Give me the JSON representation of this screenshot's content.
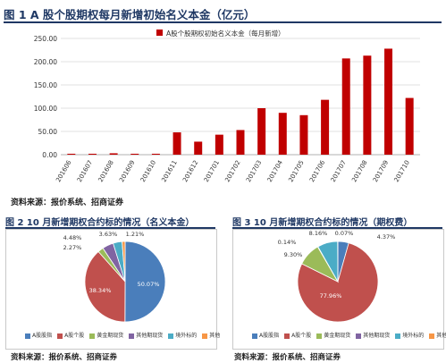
{
  "fig1": {
    "title": "图 1 A 股个股期权每月新增初始名义本金（亿元）",
    "legend_label": "A股个股期权初始名义本金（每月新增）",
    "bar_color": "#c00000"
  },
  "fig2": {
    "title": "图 2 10 月新增期权合约标的情况（名义本金）"
  },
  "fig3": {
    "title": "图 3 10 月新增期权合约标的情况（期权费）"
  },
  "source_text": "资料来源：报价系统、招商证券",
  "pie_legend": [
    {
      "label": "A股股指",
      "color": "#4a7ebb"
    },
    {
      "label": "A股个股",
      "color": "#c0504d"
    },
    {
      "label": "黄金期现货",
      "color": "#9bbb59"
    },
    {
      "label": "其他期现货",
      "color": "#8064a2"
    },
    {
      "label": "境外标的",
      "color": "#4bacc6"
    },
    {
      "label": "其他",
      "color": "#f79646"
    }
  ],
  "chart_data": [
    {
      "type": "bar",
      "title": "图 1 A 股个股期权每月新增初始名义本金（亿元）",
      "categories": [
        "201606",
        "201607",
        "201608",
        "201609",
        "201610",
        "201611",
        "201612",
        "201701",
        "201702",
        "201703",
        "201704",
        "201705",
        "201706",
        "201707",
        "201708",
        "201709",
        "201710"
      ],
      "series": [
        {
          "name": "A股个股期权初始名义本金（每月新增）",
          "values": [
            2,
            2,
            3,
            2,
            2,
            48,
            28,
            43,
            53,
            100,
            90,
            85,
            118,
            207,
            213,
            228,
            122
          ]
        }
      ],
      "ylim": [
        0,
        250
      ],
      "yticks": [
        "0.00",
        "50.00",
        "100.00",
        "150.00",
        "200.00",
        "250.00"
      ],
      "grid": true,
      "legend_position": "top"
    },
    {
      "type": "pie",
      "title": "图 2 10 月新增期权合约标的情况（名义本金）",
      "labels": [
        "A股股指",
        "A股个股",
        "黄金期现货",
        "其他期现货",
        "境外标的",
        "其他"
      ],
      "values": [
        50.07,
        38.34,
        2.27,
        4.48,
        3.63,
        1.21
      ],
      "value_labels": [
        "50.07%",
        "38.34%",
        "2.27%",
        "4.48%",
        "3.63%",
        "1.21%"
      ]
    },
    {
      "type": "pie",
      "title": "图 3 10 月新增期权合约标的情况（期权费）",
      "labels": [
        "A股股指",
        "A股个股",
        "黄金期现货",
        "其他期现货",
        "境外标的",
        "其他"
      ],
      "values": [
        4.37,
        77.96,
        9.3,
        0.14,
        8.16,
        0.07
      ],
      "value_labels": [
        "4.37%",
        "77.96%",
        "9.30%",
        "0.14%",
        "8.16%",
        "0.07%"
      ]
    }
  ]
}
